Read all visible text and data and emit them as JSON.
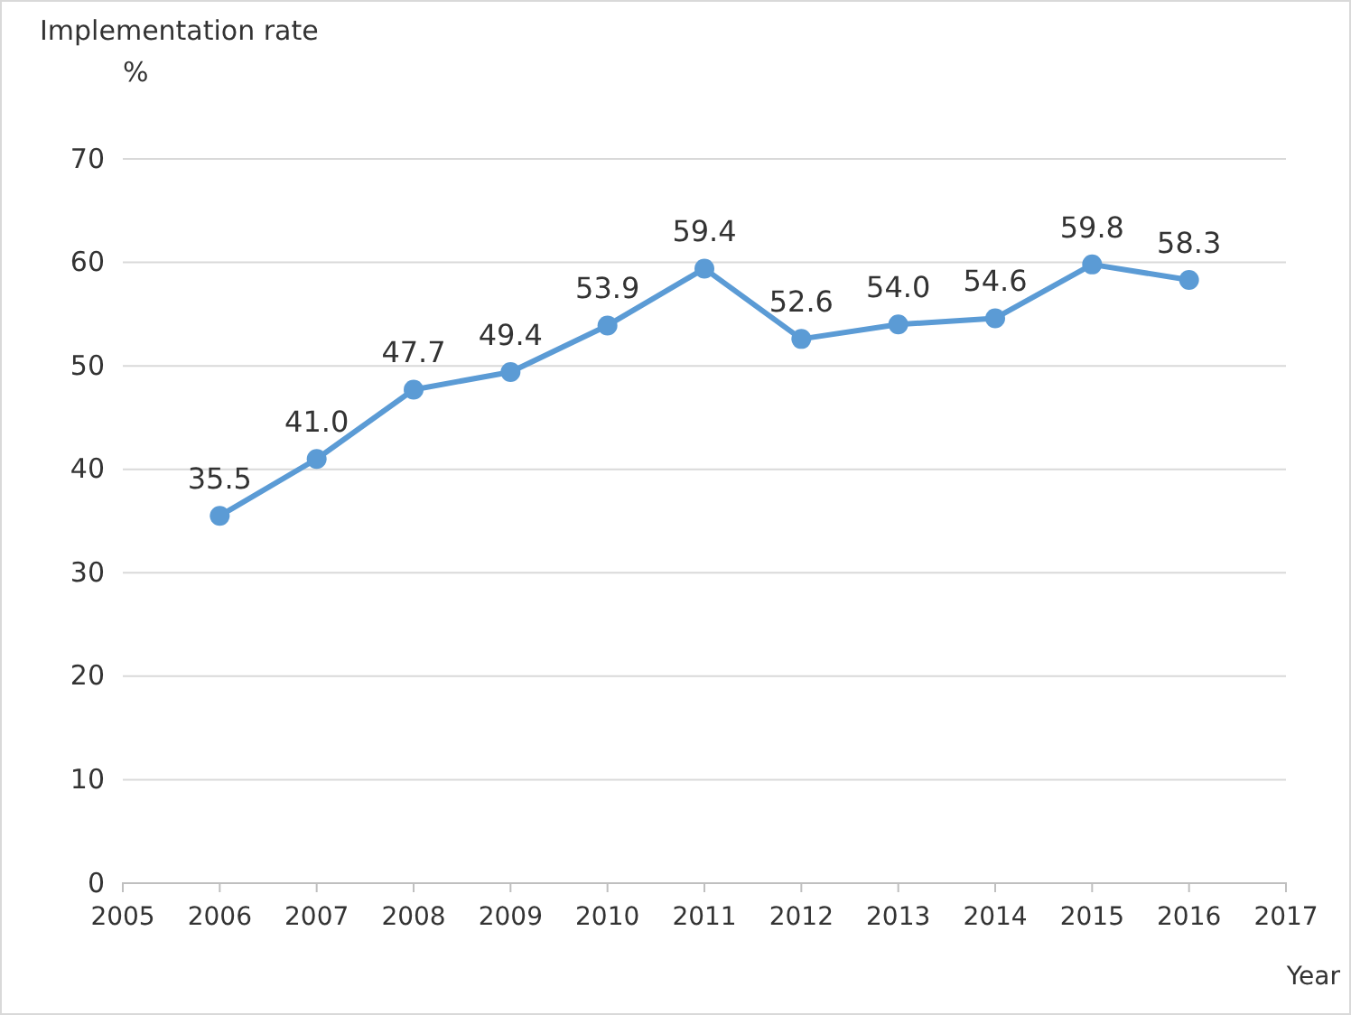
{
  "chart_data": {
    "type": "line",
    "ylabel": "Implementation rate\n%",
    "xlabel": "Year",
    "x": [
      2006,
      2007,
      2008,
      2009,
      2010,
      2011,
      2012,
      2013,
      2014,
      2015,
      2016
    ],
    "series": [
      {
        "color": "#5b9bd5",
        "values": [
          35.5,
          41.0,
          47.7,
          49.4,
          53.9,
          59.4,
          52.6,
          54.0,
          54.6,
          59.8,
          58.3
        ],
        "value_labels": [
          "35.5",
          "41.0",
          "47.7",
          "49.4",
          "53.9",
          "59.4",
          "52.6",
          "54.0",
          "54.6",
          "59.8",
          "58.3"
        ]
      }
    ],
    "xlim": [
      2005,
      2017
    ],
    "xticks": [
      2005,
      2006,
      2007,
      2008,
      2009,
      2010,
      2011,
      2012,
      2013,
      2014,
      2015,
      2016,
      2017
    ],
    "ylim": [
      0,
      70
    ],
    "yticks": [
      0,
      10,
      20,
      30,
      40,
      50,
      60,
      70
    ],
    "grid": "y",
    "marker": "circle",
    "line_style": "solid"
  }
}
